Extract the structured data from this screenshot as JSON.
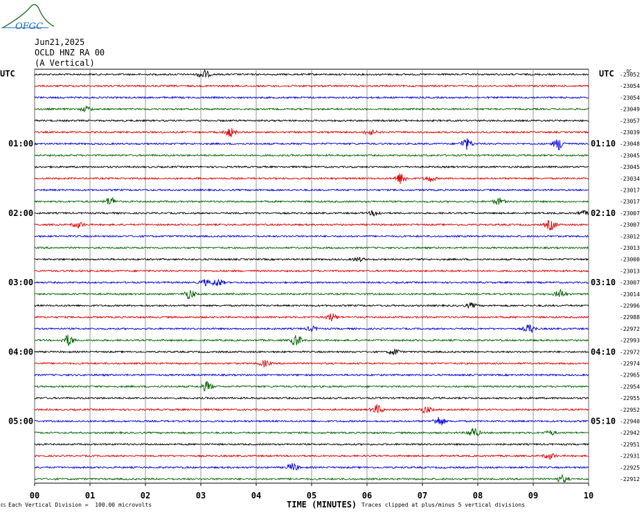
{
  "header": {
    "logo_text": "OFGC",
    "date": "Jun21,2025",
    "station": "OCLD HNZ RA 00",
    "channel": "(A Vertical)"
  },
  "chart_data": {
    "type": "line",
    "title": "Jun21,2025 OCLD HNZ RA 00 (A Vertical)",
    "left_timezone": "UTC",
    "right_timezone": "UTC",
    "xlabel": "TIME (MINUTES)",
    "x_ticks": [
      "00",
      "01",
      "02",
      "03",
      "04",
      "05",
      "06",
      "07",
      "08",
      "09",
      "10"
    ],
    "xlim": [
      0,
      10
    ],
    "left_hour_labels": [
      {
        "row": 6,
        "label": "01:00"
      },
      {
        "row": 12,
        "label": "02:00"
      },
      {
        "row": 18,
        "label": "03:00"
      },
      {
        "row": 24,
        "label": "04:00"
      },
      {
        "row": 30,
        "label": "05:00"
      }
    ],
    "right_hour_labels": [
      {
        "row": 6,
        "label": "01:10"
      },
      {
        "row": 12,
        "label": "02:10"
      },
      {
        "row": 18,
        "label": "03:10"
      },
      {
        "row": 24,
        "label": "04:10"
      },
      {
        "row": 30,
        "label": "05:10"
      }
    ],
    "trace_colors": [
      "#000000",
      "#e00000",
      "#0000e0",
      "#006400"
    ],
    "trace_offsets": [
      -23052,
      -23054,
      -23054,
      -23049,
      -23057,
      -23039,
      -23048,
      -23045,
      -23045,
      -23034,
      -23017,
      -23017,
      -23007,
      -23007,
      -23012,
      -23013,
      -23000,
      -23013,
      -23007,
      -23014,
      -22996,
      -22988,
      -22972,
      -22993,
      -22972,
      -22974,
      -22965,
      -22954,
      -22955,
      -22952,
      -22940,
      -22942,
      -22951,
      -22931,
      -22925,
      -22912
    ],
    "dc_label": "DC",
    "footer_small": "ES",
    "footer_scale": "Each Vertical Division =  100.00 microvolts",
    "footer_clip": "Traces clipped at plus/minus 5 vertical divisions"
  }
}
